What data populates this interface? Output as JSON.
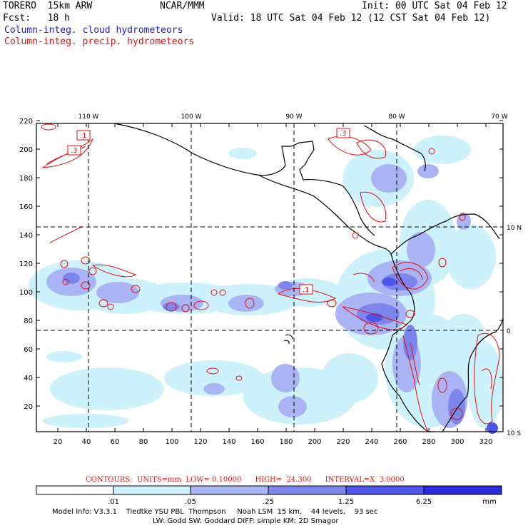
{
  "header": {
    "run_name": "TORERO  15km ARW",
    "org": "NCAR/MMM",
    "init": "Init: 00 UTC Sat 04 Feb 12",
    "fcst": "Fcst:   18 h",
    "valid": "Valid: 18 UTC Sat 04 Feb 12 (12 CST Sat 04 Feb 12)",
    "legend_cloud": "Column-integ. cloud hydrometeors",
    "legend_precip": "Column-integ. precip. hydrometeors"
  },
  "colors": {
    "cloud_text": "#1c1ccc",
    "precip_text": "#dd1111",
    "precip_contour": "#e01010",
    "shade1": "#cdf2fb",
    "shade2": "#aab4f4",
    "shade3": "#7e86ee",
    "shade4": "#4f55e6",
    "shade5": "#2a2cdc"
  },
  "map": {
    "lon_labels": [
      "110 W",
      "100 W",
      "90 W",
      "80 W",
      "70 W"
    ],
    "lat_labels": [
      "10 N",
      "0",
      "10 S"
    ],
    "x_ticks": [
      "20",
      "40",
      "60",
      "80",
      "100",
      "120",
      "140",
      "160",
      "180",
      "200",
      "220",
      "240",
      "260",
      "280",
      "300",
      "320"
    ],
    "y_ticks": [
      "20",
      "40",
      "60",
      "80",
      "100",
      "120",
      "140",
      "160",
      "180",
      "200",
      "220"
    ],
    "contour_labels": [
      ".1",
      ".3",
      ".3",
      ".1"
    ]
  },
  "colorbar": {
    "labels": [
      ".01",
      ".05",
      ".25",
      "1.25",
      "6.25"
    ],
    "unit": "mm",
    "contours_info": "CONTOURS:  UNITS=mm  LOW= 0.10000      HIGH=  24.300      INTERVAL=X  3.0000"
  },
  "model_info": {
    "line1": "Model Info: V3.3.1    Tiedtke YSU PBL  Thompson     Noah LSM  15 km,    44 levels,    93 sec",
    "line2": "LW: Godd SW: Goddard DIFF: simple KM: 2D Smagor"
  }
}
